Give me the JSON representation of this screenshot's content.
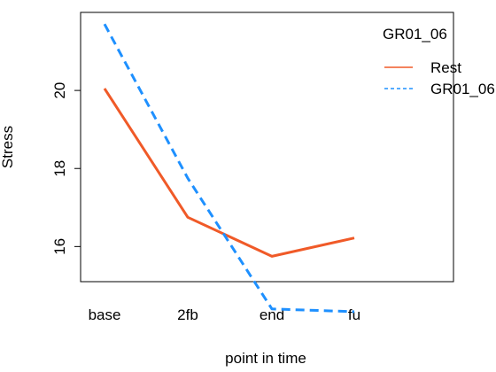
{
  "chart_data": {
    "type": "line",
    "categories": [
      "base",
      "2fb",
      "end",
      "fu"
    ],
    "xlabel": "point in time",
    "ylabel": "Stress",
    "ylim": [
      15.1,
      22.0
    ],
    "yticks": [
      16,
      18,
      20
    ],
    "grid": false,
    "legend": {
      "title": "GR01_06",
      "placement": "top-right",
      "entries": [
        "Rest",
        "GR01_06"
      ]
    },
    "series": [
      {
        "name": "Rest",
        "values": [
          20.05,
          16.75,
          15.75,
          16.22
        ],
        "color": "#f05a28",
        "style": "solid"
      },
      {
        "name": "GR01_06",
        "values": [
          21.7,
          17.75,
          14.4,
          14.33
        ],
        "color": "#1e90ff",
        "style": "dashed"
      }
    ]
  }
}
